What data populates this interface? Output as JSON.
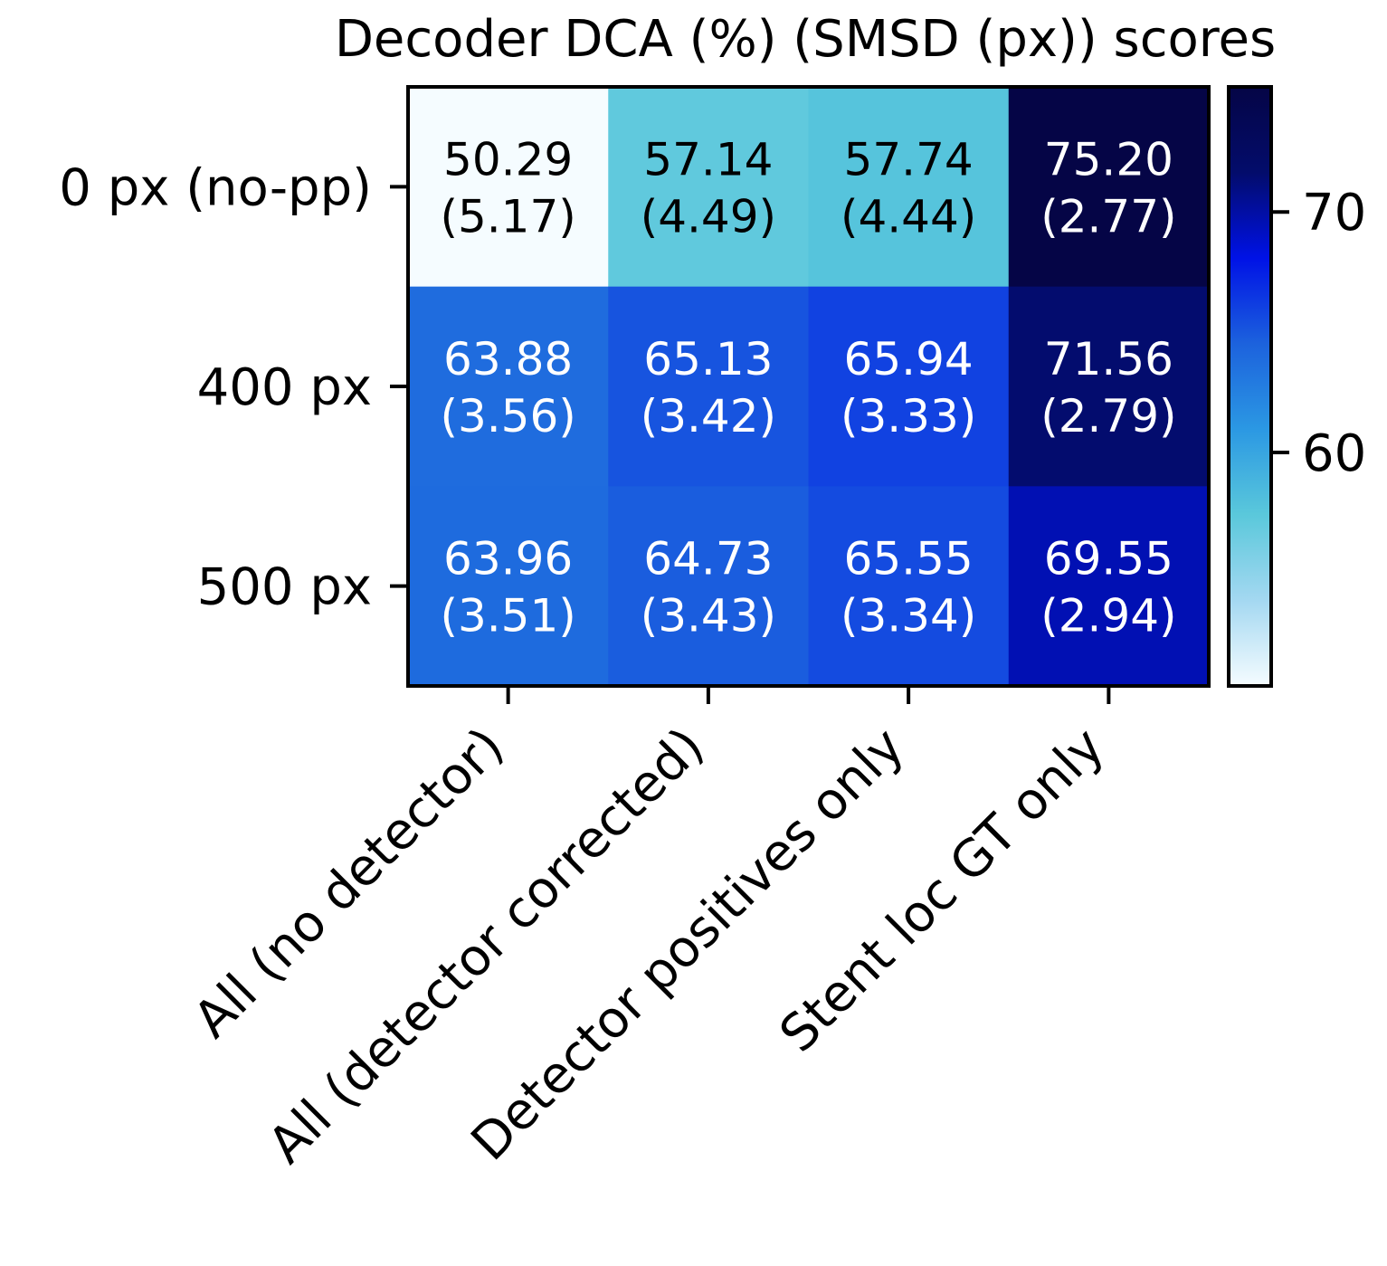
{
  "chart_data": {
    "type": "heatmap",
    "title": "Decoder DCA (%) (SMSD (px)) scores",
    "rows": [
      "0 px (no-pp)",
      "400 px",
      "500 px"
    ],
    "columns": [
      "All (no detector)",
      "All (detector corrected)",
      "Detector positives only",
      "Stent loc GT only"
    ],
    "values": [
      [
        50.29,
        57.14,
        57.74,
        75.2
      ],
      [
        63.88,
        65.13,
        65.94,
        71.56
      ],
      [
        63.96,
        64.73,
        65.55,
        69.55
      ]
    ],
    "secondary_values": [
      [
        5.17,
        4.49,
        4.44,
        2.77
      ],
      [
        3.56,
        3.42,
        3.33,
        2.79
      ],
      [
        3.51,
        3.43,
        3.34,
        2.94
      ]
    ],
    "colorbar": {
      "range": [
        50.29,
        75.2
      ],
      "ticks": [
        60,
        70
      ],
      "tick_labels": [
        "60",
        "70"
      ]
    },
    "colormap": [
      "#f5fcff",
      "#a4d8f1",
      "#5ac8db",
      "#2b98e3",
      "#1c62dd",
      "#0012e6",
      "#030c6b",
      "#050546"
    ],
    "light_text_color": "#ffffff",
    "dark_text_color": "#000000"
  }
}
